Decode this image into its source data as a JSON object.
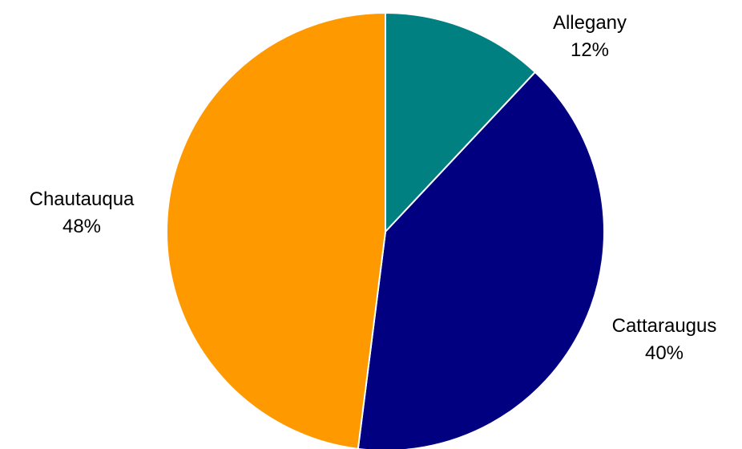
{
  "chart_data": {
    "type": "pie",
    "title": "",
    "slices": [
      {
        "label": "Allegany",
        "percent_label": "12%",
        "value": 12,
        "color": "#008080"
      },
      {
        "label": "Cattaraugus",
        "percent_label": "40%",
        "value": 40,
        "color": "#000080"
      },
      {
        "label": "Chautauqua",
        "percent_label": "48%",
        "value": 48,
        "color": "#FF9900"
      }
    ]
  }
}
